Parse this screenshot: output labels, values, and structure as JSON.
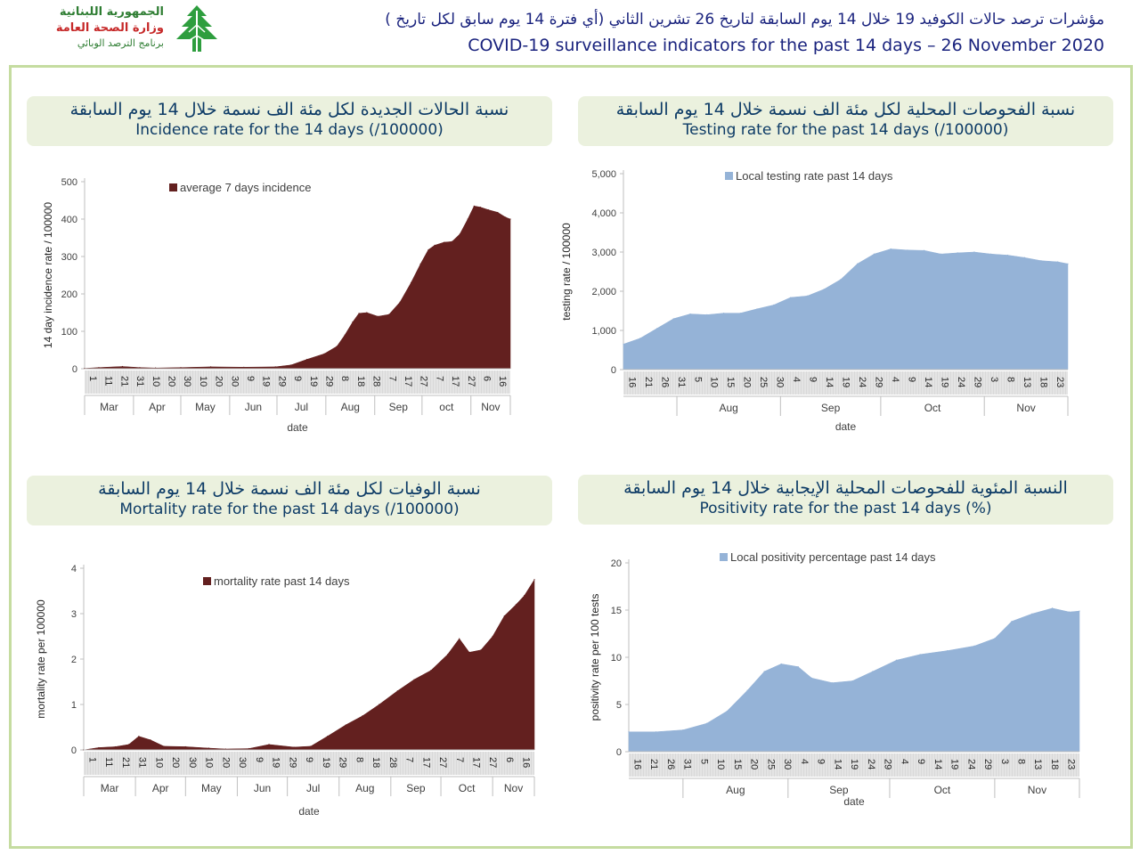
{
  "header": {
    "logo_line1": "الجمهورية اللبنانية",
    "logo_line2": "وزارة الصحة العامة",
    "logo_line3": "برنامج الترصد الوبائي",
    "title_ar": "مؤشرات ترصد حالات الكوفيد 19 خلال 14 يوم السابقة لتاريخ 26 تشرين الثاني (أي فترة 14 يوم سابق لكل تاريخ )",
    "title_en": "COVID-19 surveillance indicators for the past 14 days – 26 November 2020",
    "colors": {
      "title": "#1a237e",
      "logo_green": "#2e7d32",
      "logo_red": "#c62828"
    }
  },
  "panels": {
    "incidence": {
      "title_ar": "نسبة الحالات الجديدة لكل مئة الف نسمة خلال 14 يوم السابقة",
      "title_en": "Incidence rate for the 14 days  (/100000)"
    },
    "testing": {
      "title_ar": "نسبة الفحوصات المحلية لكل مئة الف نسمة خلال 14 يوم السابقة",
      "title_en": "Testing rate for the past 14 days (/100000)"
    },
    "mortality": {
      "title_ar": "نسبة الوفيات لكل مئة الف نسمة خلال 14 يوم السابقة",
      "title_en": "Mortality rate for the past 14 days (/100000)"
    },
    "positivity": {
      "title_ar": "النسبة المئوية للفحوصات المحلية الإيجابية خلال 14 يوم السابقة",
      "title_en": "Positivity rate for the past 14 days (%)"
    }
  },
  "chart_data": [
    {
      "id": "incidence",
      "type": "area",
      "color": "#63201f",
      "ylabel": "14 day incidence rate / 100000",
      "xlabel": "date",
      "ylim": [
        0,
        500
      ],
      "yticks": [
        0,
        100,
        200,
        300,
        400,
        500
      ],
      "ytick_labels": [
        "0",
        "100",
        "200",
        "300",
        "400",
        "500"
      ],
      "legend": "top-left",
      "grid": false,
      "series": [
        {
          "name": "average 7 days incidence"
        }
      ],
      "day_labels": [
        "1",
        "11",
        "21",
        "31",
        "10",
        "20",
        "30",
        "10",
        "20",
        "30",
        "9",
        "19",
        "29",
        "9",
        "19",
        "29",
        "8",
        "18",
        "28",
        "7",
        "17",
        "27",
        "7",
        "17",
        "27",
        "6",
        "16"
      ],
      "months": [
        "Mar",
        "Apr",
        "May",
        "Jun",
        "Jul",
        "Aug",
        "Sep",
        "oct",
        "Nov"
      ],
      "x": [
        "2020-03-01",
        "2020-03-10",
        "2020-03-25",
        "2020-04-05",
        "2020-04-15",
        "2020-05-01",
        "2020-05-20",
        "2020-06-10",
        "2020-06-30",
        "2020-07-10",
        "2020-07-20",
        "2020-07-31",
        "2020-08-08",
        "2020-08-13",
        "2020-08-18",
        "2020-08-22",
        "2020-08-27",
        "2020-09-03",
        "2020-09-10",
        "2020-09-17",
        "2020-09-24",
        "2020-09-30",
        "2020-10-05",
        "2020-10-09",
        "2020-10-15",
        "2020-10-20",
        "2020-10-25",
        "2020-10-30",
        "2020-11-03",
        "2020-11-07",
        "2020-11-12",
        "2020-11-18",
        "2020-11-23",
        "2020-11-26"
      ],
      "values": [
        1,
        3,
        6,
        3,
        2,
        3,
        5,
        4,
        5,
        10,
        25,
        40,
        60,
        90,
        125,
        148,
        150,
        140,
        145,
        178,
        230,
        280,
        318,
        330,
        338,
        340,
        360,
        400,
        435,
        432,
        425,
        418,
        405,
        400
      ]
    },
    {
      "id": "testing",
      "type": "area",
      "color": "#95b3d7",
      "ylabel": "testing rate / 100000",
      "xlabel": "date",
      "ylim": [
        0,
        5000
      ],
      "yticks": [
        0,
        1000,
        2000,
        3000,
        4000,
        5000
      ],
      "ytick_labels": [
        "0",
        "1,000",
        "2,000",
        "3,000",
        "4,000",
        "5,000"
      ],
      "legend": "top",
      "grid": false,
      "series": [
        {
          "name": "Local testing rate past 14 days"
        }
      ],
      "day_labels": [
        "16",
        "21",
        "26",
        "31",
        "5",
        "10",
        "15",
        "20",
        "25",
        "30",
        "4",
        "9",
        "14",
        "19",
        "24",
        "29",
        "4",
        "9",
        "14",
        "19",
        "24",
        "29",
        "3",
        "8",
        "13",
        "18",
        "23"
      ],
      "months": [
        "Aug",
        "Sep",
        "Oct",
        "Nov"
      ],
      "x": [
        "2020-07-16",
        "2020-07-21",
        "2020-07-26",
        "2020-07-31",
        "2020-08-05",
        "2020-08-10",
        "2020-08-15",
        "2020-08-20",
        "2020-08-25",
        "2020-08-30",
        "2020-09-04",
        "2020-09-09",
        "2020-09-14",
        "2020-09-19",
        "2020-09-24",
        "2020-09-29",
        "2020-10-04",
        "2020-10-09",
        "2020-10-14",
        "2020-10-19",
        "2020-10-24",
        "2020-10-29",
        "2020-11-03",
        "2020-11-08",
        "2020-11-13",
        "2020-11-18",
        "2020-11-23",
        "2020-11-26"
      ],
      "values": [
        650,
        800,
        1050,
        1300,
        1420,
        1400,
        1440,
        1440,
        1550,
        1650,
        1840,
        1880,
        2050,
        2300,
        2700,
        2950,
        3080,
        3050,
        3040,
        2950,
        2980,
        3000,
        2950,
        2920,
        2860,
        2780,
        2750,
        2700
      ]
    },
    {
      "id": "mortality",
      "type": "area",
      "color": "#63201f",
      "ylabel": "mortality rate per 100000",
      "xlabel": "date",
      "ylim": [
        0,
        4
      ],
      "yticks": [
        0,
        1,
        2,
        3,
        4
      ],
      "ytick_labels": [
        "0",
        "1",
        "2",
        "3",
        "4"
      ],
      "legend": "top",
      "grid": false,
      "series": [
        {
          "name": "mortality rate past 14 days"
        }
      ],
      "day_labels": [
        "1",
        "11",
        "21",
        "31",
        "10",
        "20",
        "30",
        "10",
        "20",
        "30",
        "9",
        "19",
        "29",
        "9",
        "19",
        "29",
        "8",
        "18",
        "28",
        "7",
        "17",
        "27",
        "7",
        "17",
        "27",
        "6",
        "16"
      ],
      "months": [
        "Mar",
        "Apr",
        "May",
        "Jun",
        "Jul",
        "Aug",
        "Sep",
        "Oct",
        "Nov"
      ],
      "x": [
        "2020-03-01",
        "2020-03-10",
        "2020-03-20",
        "2020-03-28",
        "2020-04-03",
        "2020-04-10",
        "2020-04-18",
        "2020-05-01",
        "2020-05-15",
        "2020-05-25",
        "2020-06-08",
        "2020-06-20",
        "2020-07-05",
        "2020-07-15",
        "2020-07-25",
        "2020-08-05",
        "2020-08-15",
        "2020-08-25",
        "2020-09-05",
        "2020-09-15",
        "2020-09-25",
        "2020-10-05",
        "2020-10-12",
        "2020-10-18",
        "2020-10-25",
        "2020-11-01",
        "2020-11-08",
        "2020-11-15",
        "2020-11-20",
        "2020-11-26"
      ],
      "values": [
        0,
        0.05,
        0.07,
        0.12,
        0.3,
        0.22,
        0.08,
        0.07,
        0.04,
        0.02,
        0.03,
        0.12,
        0.06,
        0.08,
        0.3,
        0.55,
        0.75,
        1.0,
        1.3,
        1.55,
        1.75,
        2.1,
        2.45,
        2.15,
        2.2,
        2.5,
        2.95,
        3.2,
        3.4,
        3.75
      ]
    },
    {
      "id": "positivity",
      "type": "area",
      "color": "#95b3d7",
      "ylabel": "positivity rate per 100 tests",
      "xlabel": "date",
      "ylim": [
        0,
        20
      ],
      "yticks": [
        0,
        5,
        10,
        15,
        20
      ],
      "ytick_labels": [
        "0",
        "5",
        "10",
        "15",
        "20"
      ],
      "legend": "top",
      "grid": false,
      "series": [
        {
          "name": "Local positivity percentage past 14 days"
        }
      ],
      "day_labels": [
        "16",
        "21",
        "26",
        "31",
        "5",
        "10",
        "15",
        "20",
        "25",
        "30",
        "4",
        "9",
        "14",
        "19",
        "24",
        "29",
        "4",
        "9",
        "14",
        "19",
        "24",
        "29",
        "3",
        "8",
        "13",
        "18",
        "23"
      ],
      "months": [
        "Aug",
        "Sep",
        "Oct",
        "Nov"
      ],
      "x": [
        "2020-07-16",
        "2020-07-24",
        "2020-08-01",
        "2020-08-08",
        "2020-08-14",
        "2020-08-20",
        "2020-08-25",
        "2020-08-30",
        "2020-09-04",
        "2020-09-08",
        "2020-09-14",
        "2020-09-20",
        "2020-09-26",
        "2020-10-03",
        "2020-10-10",
        "2020-10-18",
        "2020-10-26",
        "2020-11-01",
        "2020-11-06",
        "2020-11-12",
        "2020-11-18",
        "2020-11-23",
        "2020-11-26"
      ],
      "values": [
        2.1,
        2.1,
        2.3,
        3.0,
        4.3,
        6.5,
        8.5,
        9.3,
        9.0,
        7.8,
        7.3,
        7.5,
        8.5,
        9.7,
        10.3,
        10.7,
        11.2,
        12.0,
        13.8,
        14.6,
        15.2,
        14.8,
        14.9
      ]
    }
  ]
}
